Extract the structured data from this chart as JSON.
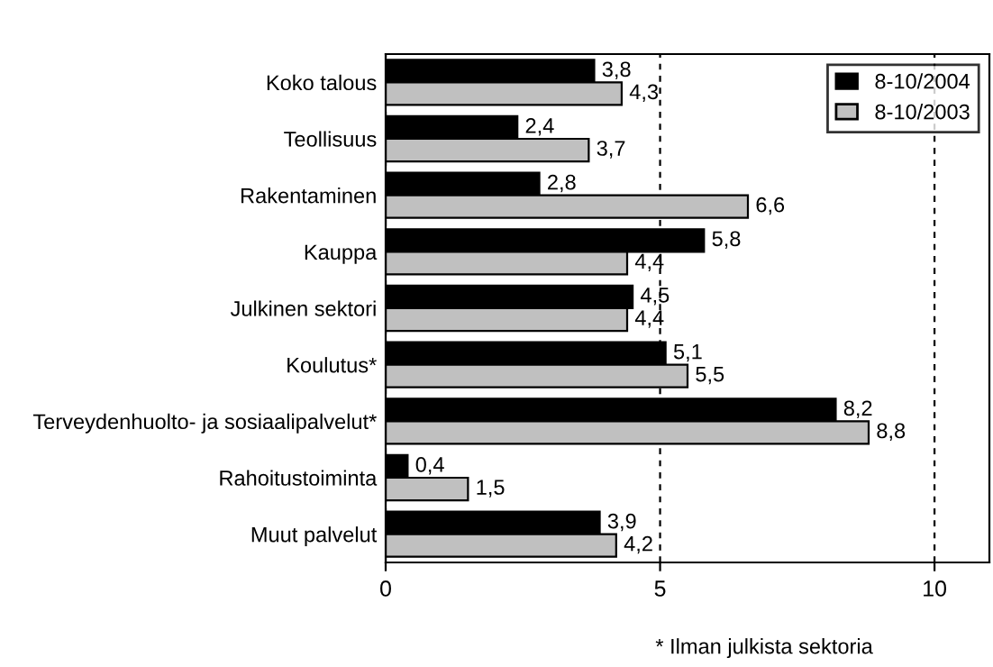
{
  "chart_data": {
    "type": "bar",
    "orientation": "horizontal",
    "categories": [
      "Koko talous",
      "Teollisuus",
      "Rakentaminen",
      "Kauppa",
      "Julkinen sektori",
      "Koulutus*",
      "Terveydenhuolto- ja sosiaalipalvelut*",
      "Rahoitustoiminta",
      "Muut palvelut"
    ],
    "series": [
      {
        "name": "8-10/2004",
        "color": "#000000",
        "values": [
          3.8,
          2.4,
          2.8,
          5.8,
          4.5,
          5.1,
          8.2,
          0.4,
          3.9
        ],
        "value_labels": [
          "3,8",
          "2,4",
          "2,8",
          "5,8",
          "4,5",
          "5,1",
          "8,2",
          "0,4",
          "3,9"
        ]
      },
      {
        "name": "8-10/2003",
        "color": "#c0c0c0",
        "values": [
          4.3,
          3.7,
          6.6,
          4.4,
          4.4,
          5.5,
          8.8,
          1.5,
          4.2
        ],
        "value_labels": [
          "4,3",
          "3,7",
          "6,6",
          "4,4",
          "4,4",
          "5,5",
          "8,8",
          "1,5",
          "4,2"
        ]
      }
    ],
    "xlim": [
      0,
      11
    ],
    "xticks": [
      0,
      5,
      10
    ],
    "grid": "x",
    "legend": "top right",
    "annotations": [
      "* Ilman julkista sektoria"
    ]
  }
}
